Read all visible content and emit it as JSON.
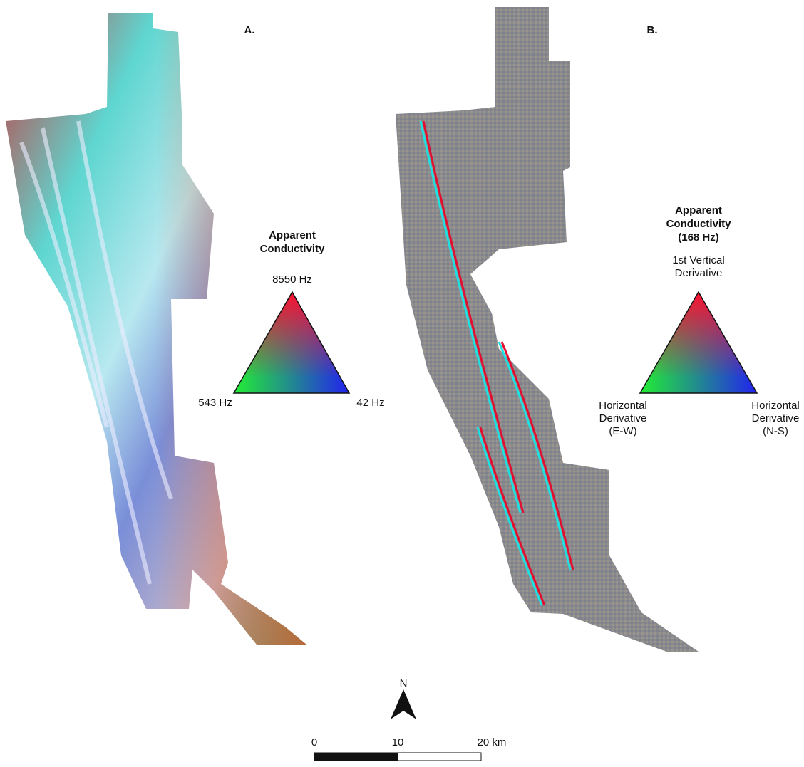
{
  "panels": [
    {
      "label": "A.",
      "legend": {
        "title": [
          "Apparent",
          "Conductivity"
        ],
        "top": [
          "8550 Hz"
        ],
        "left": [
          "543 Hz"
        ],
        "right": [
          "42 Hz"
        ]
      }
    },
    {
      "label": "B.",
      "legend": {
        "title": [
          "Apparent",
          "Conductivity",
          "(168 Hz)"
        ],
        "top": [
          "1st Vertical",
          "Derivative"
        ],
        "left": [
          "Horizontal",
          "Derivative",
          "(E-W)"
        ],
        "right": [
          "Horizontal",
          "Derivative",
          "(N-S)"
        ]
      }
    }
  ],
  "north": "N",
  "scale_labels": [
    "0",
    "10",
    "20 km"
  ]
}
